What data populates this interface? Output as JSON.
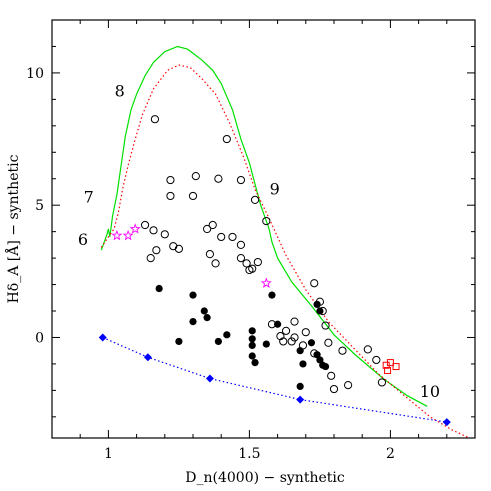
{
  "chart_data": {
    "type": "scatter",
    "title": "",
    "xlabel": "D_n(4000) − synthetic",
    "ylabel": "Hδ_A [Å] − synthetic",
    "xlim": [
      0.8,
      2.3
    ],
    "ylim": [
      -3.8,
      12
    ],
    "xticks": [
      1,
      1.5,
      2
    ],
    "xtick_labels": [
      "1",
      "1.5",
      "2"
    ],
    "yticks": [
      0,
      5,
      10
    ],
    "yticks_labels": [
      "0",
      "5",
      "10"
    ],
    "grid": false,
    "legend": "none",
    "series": [
      {
        "marker": "line",
        "color": "#00e000",
        "style": "solid",
        "points": [
          [
            0.975,
            3.3
          ],
          [
            0.985,
            3.6
          ],
          [
            0.995,
            3.9
          ],
          [
            1.0,
            4.1
          ],
          [
            1.005,
            3.8
          ],
          [
            1.015,
            4.6
          ],
          [
            1.03,
            5.4
          ],
          [
            1.045,
            6.5
          ],
          [
            1.06,
            7.6
          ],
          [
            1.08,
            8.6
          ],
          [
            1.1,
            9.2
          ],
          [
            1.13,
            9.9
          ],
          [
            1.16,
            10.4
          ],
          [
            1.2,
            10.8
          ],
          [
            1.245,
            11.0
          ],
          [
            1.28,
            10.9
          ],
          [
            1.33,
            10.5
          ],
          [
            1.37,
            10.1
          ],
          [
            1.4,
            9.6
          ],
          [
            1.44,
            8.6
          ],
          [
            1.47,
            7.5
          ],
          [
            1.5,
            6.6
          ],
          [
            1.52,
            5.8
          ],
          [
            1.54,
            5.0
          ],
          [
            1.56,
            4.4
          ],
          [
            1.57,
            4.1
          ],
          [
            1.58,
            3.6
          ],
          [
            1.6,
            3.0
          ],
          [
            1.65,
            2.1
          ],
          [
            1.72,
            1.2
          ],
          [
            1.8,
            0.1
          ],
          [
            1.88,
            -0.7
          ],
          [
            1.98,
            -1.6
          ],
          [
            2.06,
            -2.2
          ],
          [
            2.13,
            -2.6
          ]
        ]
      },
      {
        "marker": "line",
        "color": "#ff0000",
        "style": "dotted",
        "points": [
          [
            0.975,
            3.4
          ],
          [
            1.0,
            3.8
          ],
          [
            1.02,
            4.1
          ],
          [
            1.035,
            4.7
          ],
          [
            1.05,
            5.6
          ],
          [
            1.07,
            6.5
          ],
          [
            1.09,
            7.3
          ],
          [
            1.12,
            8.4
          ],
          [
            1.16,
            9.4
          ],
          [
            1.21,
            10.1
          ],
          [
            1.25,
            10.3
          ],
          [
            1.29,
            10.2
          ],
          [
            1.33,
            9.8
          ],
          [
            1.38,
            9.2
          ],
          [
            1.43,
            8.1
          ],
          [
            1.48,
            6.8
          ],
          [
            1.52,
            5.6
          ],
          [
            1.57,
            4.5
          ],
          [
            1.63,
            3.1
          ],
          [
            1.7,
            1.8
          ],
          [
            1.78,
            0.6
          ],
          [
            1.87,
            -0.4
          ],
          [
            1.96,
            -1.4
          ],
          [
            2.05,
            -2.2
          ],
          [
            2.14,
            -3.0
          ],
          [
            2.22,
            -3.5
          ],
          [
            2.28,
            -3.8
          ]
        ]
      },
      {
        "marker": "diamond-line",
        "color": "#0000ff",
        "style": "dotted",
        "points": [
          [
            0.98,
            0.0
          ],
          [
            1.14,
            -0.75
          ],
          [
            1.36,
            -1.55
          ],
          [
            1.68,
            -2.35
          ],
          [
            2.2,
            -3.2
          ]
        ]
      },
      {
        "marker": "open-circle",
        "color": "#000000",
        "points": [
          [
            1.165,
            8.25
          ],
          [
            1.22,
            5.95
          ],
          [
            1.22,
            5.35
          ],
          [
            1.3,
            5.35
          ],
          [
            1.31,
            6.1
          ],
          [
            1.39,
            6.0
          ],
          [
            1.42,
            7.5
          ],
          [
            1.47,
            5.95
          ],
          [
            1.52,
            5.2
          ],
          [
            1.13,
            4.25
          ],
          [
            1.16,
            4.05
          ],
          [
            1.2,
            3.9
          ],
          [
            1.23,
            3.45
          ],
          [
            1.25,
            3.35
          ],
          [
            1.17,
            3.3
          ],
          [
            1.15,
            3.0
          ],
          [
            1.35,
            4.1
          ],
          [
            1.37,
            4.25
          ],
          [
            1.4,
            3.8
          ],
          [
            1.36,
            3.15
          ],
          [
            1.38,
            2.8
          ],
          [
            1.44,
            3.8
          ],
          [
            1.47,
            3.5
          ],
          [
            1.47,
            3.0
          ],
          [
            1.49,
            2.8
          ],
          [
            1.5,
            2.55
          ],
          [
            1.51,
            2.6
          ],
          [
            1.53,
            2.85
          ],
          [
            1.56,
            4.4
          ],
          [
            1.58,
            0.5
          ],
          [
            1.63,
            0.25
          ],
          [
            1.61,
            0.05
          ],
          [
            1.66,
            0.0
          ],
          [
            1.65,
            -0.15
          ],
          [
            1.66,
            0.6
          ],
          [
            1.7,
            0.2
          ],
          [
            1.73,
            2.05
          ],
          [
            1.75,
            1.35
          ],
          [
            1.76,
            1.0
          ],
          [
            1.77,
            0.45
          ],
          [
            1.78,
            -0.2
          ],
          [
            1.79,
            -1.45
          ],
          [
            1.8,
            -1.95
          ],
          [
            1.83,
            -0.5
          ],
          [
            1.85,
            -1.8
          ],
          [
            1.92,
            -0.45
          ],
          [
            1.95,
            -0.85
          ],
          [
            1.97,
            -1.7
          ],
          [
            1.73,
            -0.6
          ],
          [
            1.69,
            -0.3
          ],
          [
            1.62,
            -0.15
          ]
        ]
      },
      {
        "marker": "filled-circle",
        "color": "#000000",
        "points": [
          [
            1.18,
            1.85
          ],
          [
            1.3,
            1.6
          ],
          [
            1.3,
            0.6
          ],
          [
            1.34,
            1.0
          ],
          [
            1.35,
            0.75
          ],
          [
            1.39,
            -0.15
          ],
          [
            1.42,
            0.1
          ],
          [
            1.51,
            0.25
          ],
          [
            1.51,
            -0.05
          ],
          [
            1.51,
            -0.3
          ],
          [
            1.51,
            -0.7
          ],
          [
            1.52,
            -0.95
          ],
          [
            1.56,
            -0.25
          ],
          [
            1.58,
            1.6
          ],
          [
            1.6,
            0.5
          ],
          [
            1.68,
            -0.5
          ],
          [
            1.69,
            -1.0
          ],
          [
            1.72,
            -0.2
          ],
          [
            1.74,
            -0.65
          ],
          [
            1.75,
            -0.85
          ],
          [
            1.76,
            -1.05
          ],
          [
            1.77,
            -1.1
          ],
          [
            1.75,
            1.0
          ],
          [
            1.68,
            -1.85
          ],
          [
            1.25,
            -0.15
          ],
          [
            1.74,
            1.25
          ]
        ]
      },
      {
        "marker": "star",
        "color": "#ff00ff",
        "points": [
          [
            1.03,
            3.85
          ],
          [
            1.07,
            3.85
          ],
          [
            1.095,
            4.1
          ],
          [
            1.56,
            2.05
          ]
        ]
      },
      {
        "marker": "open-square",
        "color": "#ff0000",
        "points": [
          [
            1.985,
            -1.05
          ],
          [
            2.0,
            -0.95
          ],
          [
            2.02,
            -1.1
          ],
          [
            1.99,
            -1.25
          ]
        ]
      }
    ],
    "annotations": [
      {
        "text": "8",
        "x": 1.04,
        "y": 9.1
      },
      {
        "text": "7",
        "x": 0.93,
        "y": 5.1
      },
      {
        "text": "6",
        "x": 0.91,
        "y": 3.5
      },
      {
        "text": "9",
        "x": 1.59,
        "y": 5.4
      },
      {
        "text": "10",
        "x": 2.14,
        "y": -2.25
      }
    ]
  }
}
